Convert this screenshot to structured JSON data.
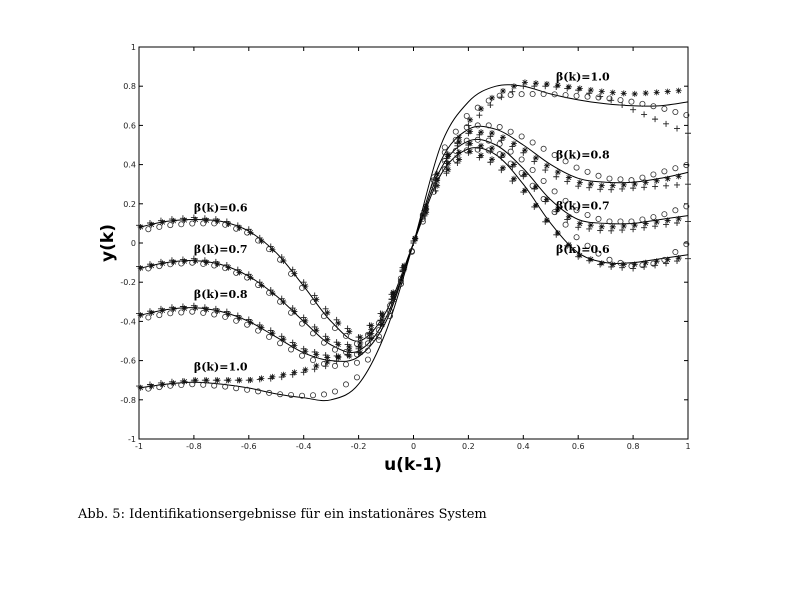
{
  "caption": "Abb. 5: Identifikationsergebnisse für ein instationäres System",
  "chart_data": {
    "type": "line",
    "title": "",
    "xlabel": "u(k-1)",
    "ylabel": "y(k)",
    "xlim": [
      -1,
      1
    ],
    "ylim": [
      -1,
      1
    ],
    "xticks": [
      -1,
      -0.8,
      -0.6,
      -0.4,
      -0.2,
      0,
      0.2,
      0.4,
      0.6,
      0.8,
      1
    ],
    "yticks": [
      -1,
      -0.8,
      -0.6,
      -0.4,
      -0.2,
      0,
      0.2,
      0.4,
      0.6,
      0.8,
      1
    ],
    "xtick_labels": [
      "-1",
      "-0.8",
      "-0.6",
      "-0.4",
      "-0.2",
      "0",
      "0.2",
      "0.4",
      "0.6",
      "0.8",
      "1"
    ],
    "ytick_labels": [
      "-1",
      "-0.8",
      "-0.6",
      "-0.4",
      "-0.2",
      "0",
      "0.2",
      "0.4",
      "0.6",
      "0.8",
      "1"
    ],
    "grid": false,
    "legend": "none",
    "x": [
      -1.0,
      -0.9,
      -0.8,
      -0.7,
      -0.6,
      -0.5,
      -0.4,
      -0.3,
      -0.2,
      -0.1,
      0.0,
      0.1,
      0.2,
      0.3,
      0.4,
      0.5,
      0.6,
      0.7,
      0.8,
      0.9,
      1.0
    ],
    "series": [
      {
        "name": "β(k)=0.6",
        "label_x": -0.8,
        "label_y": 0.16,
        "true": [
          0.08,
          0.11,
          0.12,
          0.11,
          0.06,
          -0.05,
          -0.22,
          -0.4,
          -0.5,
          -0.35,
          0.0,
          0.35,
          0.48,
          0.45,
          0.3,
          0.1,
          -0.05,
          -0.1,
          -0.1,
          -0.08,
          -0.06
        ],
        "star": [
          0.08,
          0.11,
          0.12,
          0.11,
          0.06,
          -0.05,
          -0.21,
          -0.38,
          -0.49,
          -0.34,
          0.0,
          0.34,
          0.47,
          0.42,
          0.28,
          0.09,
          -0.06,
          -0.11,
          -0.11,
          -0.09,
          -0.07
        ],
        "plus": [
          0.09,
          0.12,
          0.13,
          0.12,
          0.07,
          -0.04,
          -0.2,
          -0.37,
          -0.48,
          -0.33,
          0.01,
          0.33,
          0.46,
          0.4,
          0.26,
          0.07,
          -0.07,
          -0.12,
          -0.13,
          -0.11,
          -0.08
        ],
        "circle": [
          0.06,
          0.09,
          0.1,
          0.1,
          0.05,
          -0.06,
          -0.24,
          -0.42,
          -0.52,
          -0.37,
          -0.02,
          0.36,
          0.48,
          0.47,
          0.35,
          0.18,
          0.02,
          -0.08,
          -0.12,
          -0.1,
          0.0
        ]
      },
      {
        "name": "β(k)=0.7",
        "label_x": -0.8,
        "label_y": -0.05,
        "true": [
          -0.13,
          -0.1,
          -0.09,
          -0.11,
          -0.17,
          -0.27,
          -0.4,
          -0.52,
          -0.55,
          -0.38,
          0.0,
          0.38,
          0.52,
          0.5,
          0.38,
          0.22,
          0.12,
          0.1,
          0.1,
          0.12,
          0.14
        ],
        "star": [
          -0.13,
          -0.1,
          -0.09,
          -0.11,
          -0.17,
          -0.27,
          -0.39,
          -0.51,
          -0.54,
          -0.37,
          0.0,
          0.37,
          0.51,
          0.48,
          0.36,
          0.2,
          0.1,
          0.08,
          0.09,
          0.11,
          0.13
        ],
        "plus": [
          -0.12,
          -0.09,
          -0.08,
          -0.1,
          -0.16,
          -0.26,
          -0.38,
          -0.5,
          -0.53,
          -0.36,
          0.01,
          0.36,
          0.5,
          0.46,
          0.34,
          0.18,
          0.08,
          0.06,
          0.07,
          0.09,
          0.11
        ],
        "circle": [
          -0.14,
          -0.11,
          -0.1,
          -0.12,
          -0.18,
          -0.28,
          -0.42,
          -0.54,
          -0.57,
          -0.4,
          -0.02,
          0.4,
          0.53,
          0.52,
          0.42,
          0.28,
          0.16,
          0.11,
          0.11,
          0.14,
          0.19
        ]
      },
      {
        "name": "β(k)=0.8",
        "label_x": -0.8,
        "label_y": -0.28,
        "true": [
          -0.37,
          -0.34,
          -0.33,
          -0.35,
          -0.4,
          -0.48,
          -0.56,
          -0.6,
          -0.58,
          -0.4,
          0.0,
          0.42,
          0.58,
          0.58,
          0.5,
          0.4,
          0.33,
          0.31,
          0.31,
          0.33,
          0.36
        ],
        "star": [
          -0.37,
          -0.34,
          -0.33,
          -0.35,
          -0.4,
          -0.47,
          -0.55,
          -0.59,
          -0.57,
          -0.39,
          0.0,
          0.41,
          0.57,
          0.56,
          0.48,
          0.38,
          0.31,
          0.29,
          0.3,
          0.32,
          0.35
        ],
        "plus": [
          -0.36,
          -0.33,
          -0.32,
          -0.34,
          -0.39,
          -0.46,
          -0.54,
          -0.58,
          -0.56,
          -0.38,
          0.01,
          0.4,
          0.56,
          0.54,
          0.46,
          0.35,
          0.29,
          0.27,
          0.28,
          0.29,
          0.3
        ],
        "circle": [
          -0.39,
          -0.36,
          -0.35,
          -0.37,
          -0.42,
          -0.5,
          -0.58,
          -0.63,
          -0.61,
          -0.43,
          -0.02,
          0.44,
          0.6,
          0.6,
          0.54,
          0.46,
          0.38,
          0.33,
          0.32,
          0.36,
          0.4
        ]
      },
      {
        "name": "β(k)=1.0",
        "label_x": -0.8,
        "label_y": -0.65,
        "true": [
          -0.74,
          -0.72,
          -0.71,
          -0.72,
          -0.74,
          -0.77,
          -0.79,
          -0.8,
          -0.72,
          -0.45,
          0.0,
          0.5,
          0.72,
          0.8,
          0.8,
          0.76,
          0.73,
          0.71,
          0.7,
          0.7,
          0.72
        ],
        "star": [
          -0.74,
          -0.72,
          -0.7,
          -0.7,
          -0.7,
          -0.68,
          -0.65,
          -0.6,
          -0.52,
          -0.35,
          0.0,
          0.38,
          0.62,
          0.76,
          0.82,
          0.81,
          0.79,
          0.77,
          0.76,
          0.77,
          0.78
        ],
        "plus": [
          -0.73,
          -0.71,
          -0.7,
          -0.7,
          -0.7,
          -0.69,
          -0.66,
          -0.62,
          -0.54,
          -0.36,
          0.0,
          0.37,
          0.6,
          0.73,
          0.8,
          0.8,
          0.78,
          0.74,
          0.68,
          0.62,
          0.56
        ],
        "circle": [
          -0.75,
          -0.73,
          -0.72,
          -0.73,
          -0.75,
          -0.77,
          -0.78,
          -0.77,
          -0.68,
          -0.43,
          -0.02,
          0.46,
          0.66,
          0.75,
          0.76,
          0.76,
          0.75,
          0.74,
          0.72,
          0.69,
          0.65
        ]
      }
    ]
  }
}
